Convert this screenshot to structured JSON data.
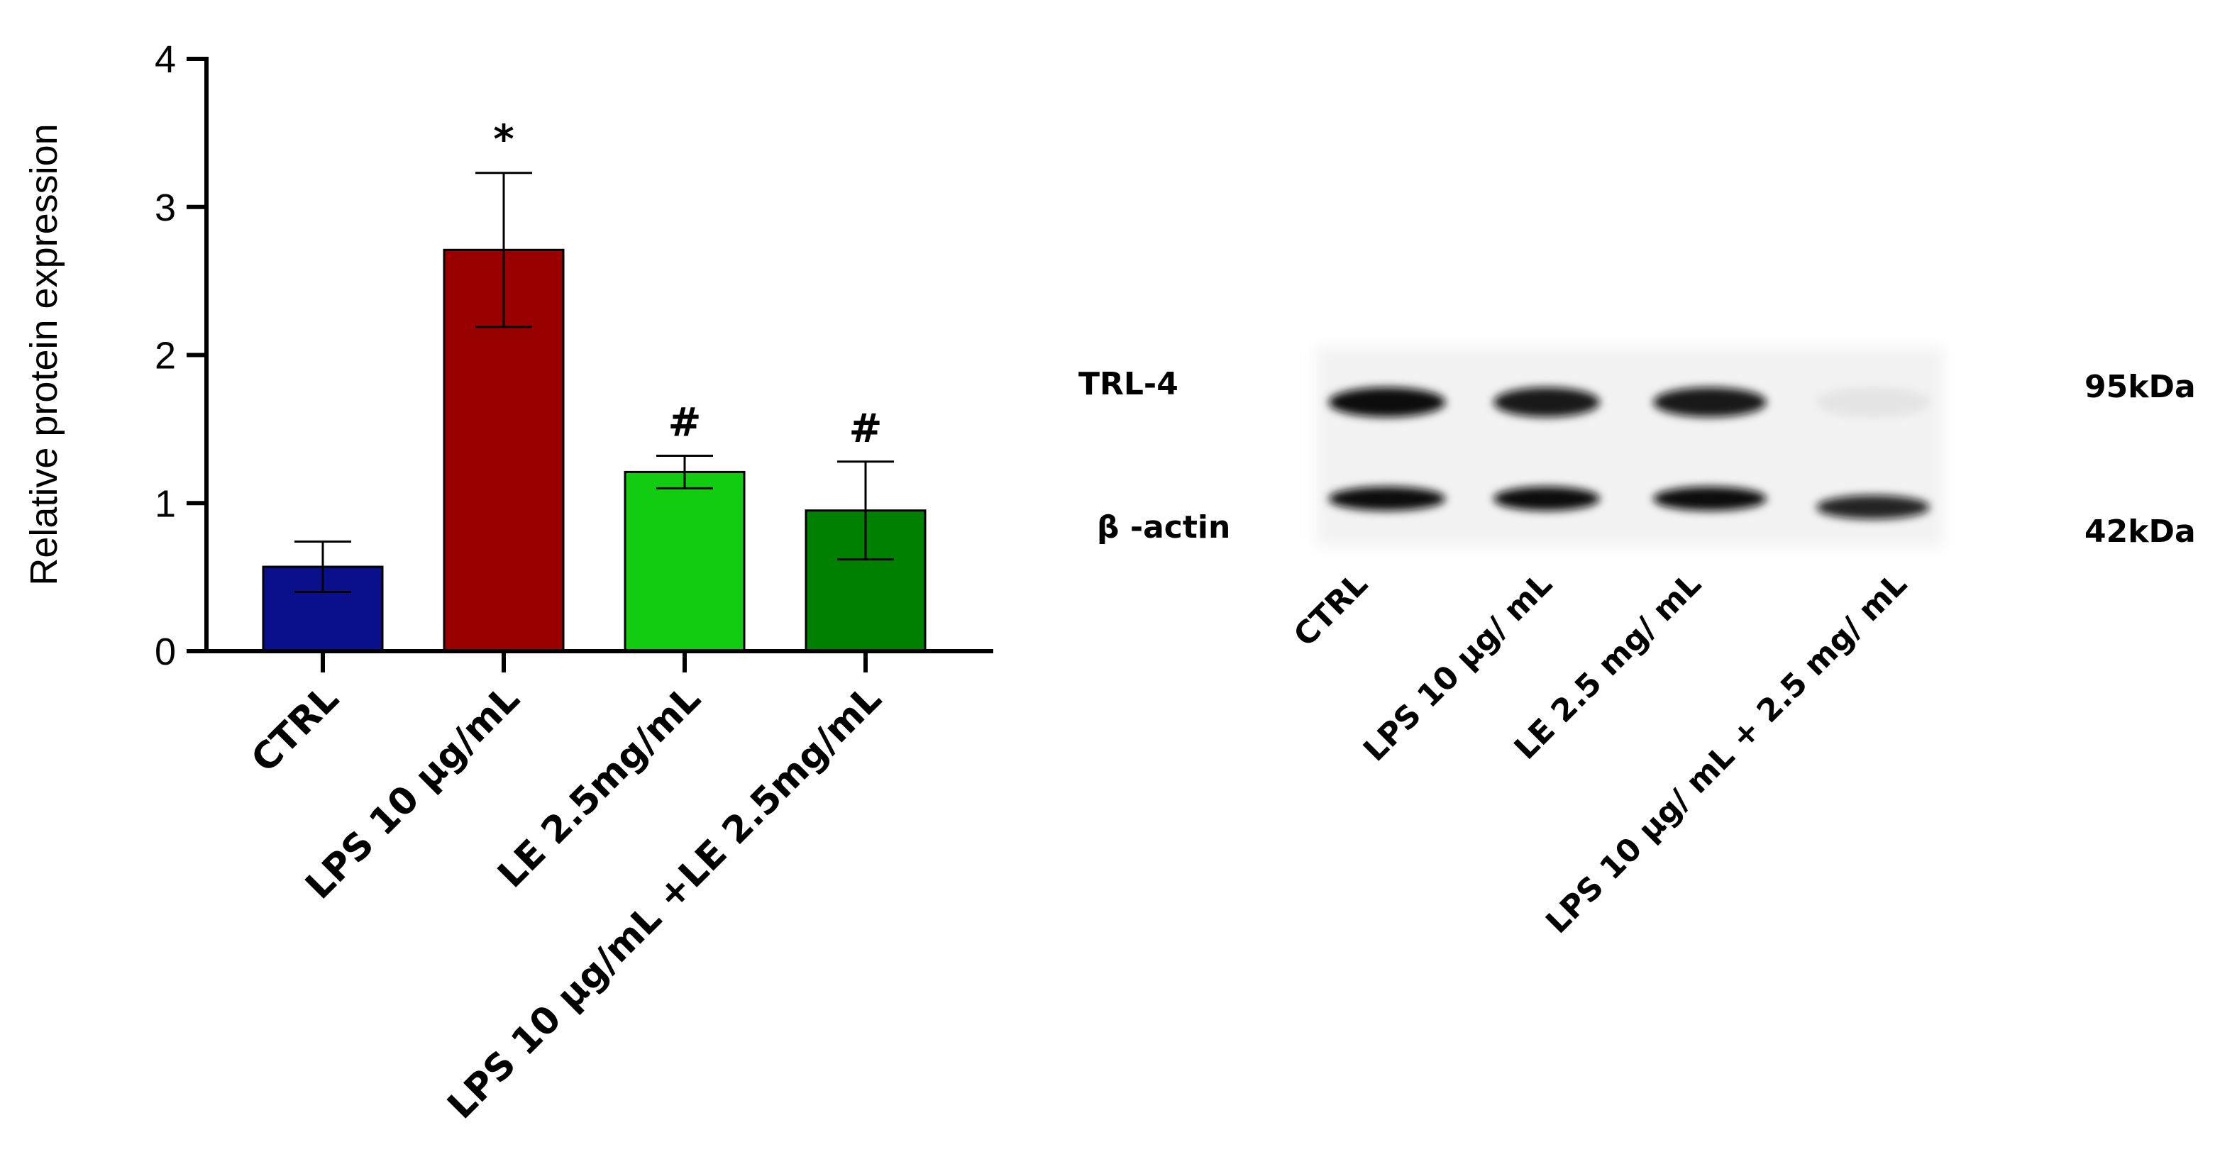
{
  "chart_data": {
    "type": "bar",
    "ylabel": "Relative protein expression",
    "ylim": [
      0,
      4
    ],
    "yticks": [
      "0",
      "1",
      "2",
      "3",
      "4"
    ],
    "categories": [
      "CTRL",
      "LPS 10 µg/mL",
      "LE 2.5mg/mL",
      "LPS 10 µg/mL +LE 2.5mg/mL"
    ],
    "values": [
      0.57,
      2.71,
      1.21,
      0.95
    ],
    "errors": [
      0.17,
      0.52,
      0.11,
      0.33
    ],
    "significance": [
      "",
      "*",
      "#",
      "#"
    ],
    "colors": [
      "#0a0f8c",
      "#990000",
      "#11cc11",
      "#008000"
    ],
    "grid": false
  },
  "blot": {
    "bands": [
      {
        "label": "TRL-4",
        "size": "95kDa",
        "intensities": [
          1.0,
          0.95,
          0.95,
          0.06
        ]
      },
      {
        "label": "β -actin",
        "size": "42kDa",
        "intensities": [
          1.0,
          1.0,
          1.0,
          0.9
        ]
      }
    ],
    "lanes": [
      "CTRL",
      "LPS 10 µg/ mL",
      "LE 2.5 mg/ mL",
      "LPS 10 µg/ mL + 2.5 mg/ mL"
    ]
  }
}
